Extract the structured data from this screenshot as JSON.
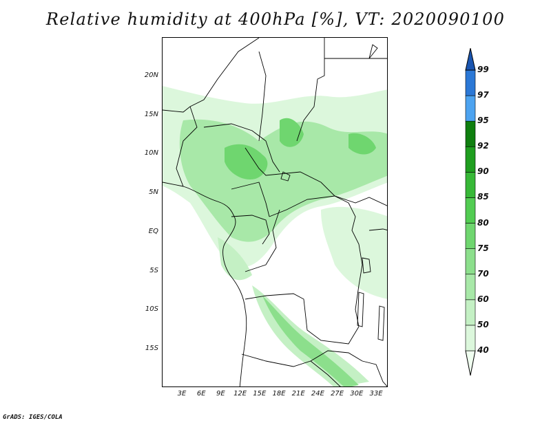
{
  "title": "Relative humidity at 400hPa [%], VT: 2020090100",
  "credit": "GrADS: IGES/COLA",
  "lat_labels": [
    "20N",
    "15N",
    "10N",
    "5N",
    "EQ",
    "5S",
    "10S",
    "15S"
  ],
  "lon_labels": [
    "3E",
    "6E",
    "9E",
    "12E",
    "15E",
    "18E",
    "21E",
    "24E",
    "27E",
    "30E",
    "33E"
  ],
  "colorbar": {
    "levels": [
      "40",
      "50",
      "60",
      "70",
      "75",
      "80",
      "85",
      "90",
      "92",
      "95",
      "97",
      "99"
    ],
    "colors": [
      "#f0fff0",
      "#dcf7dc",
      "#c4f0c4",
      "#a8e8a8",
      "#8cdf8c",
      "#6fd66f",
      "#52cc52",
      "#37b837",
      "#1f9e1f",
      "#0f7f0f",
      "#4da3f0",
      "#2b78d6",
      "#1a55b0"
    ]
  },
  "map": {
    "region": "Central Africa",
    "lon_range": [
      0,
      35
    ],
    "lat_range": [
      -20,
      24.5
    ]
  }
}
